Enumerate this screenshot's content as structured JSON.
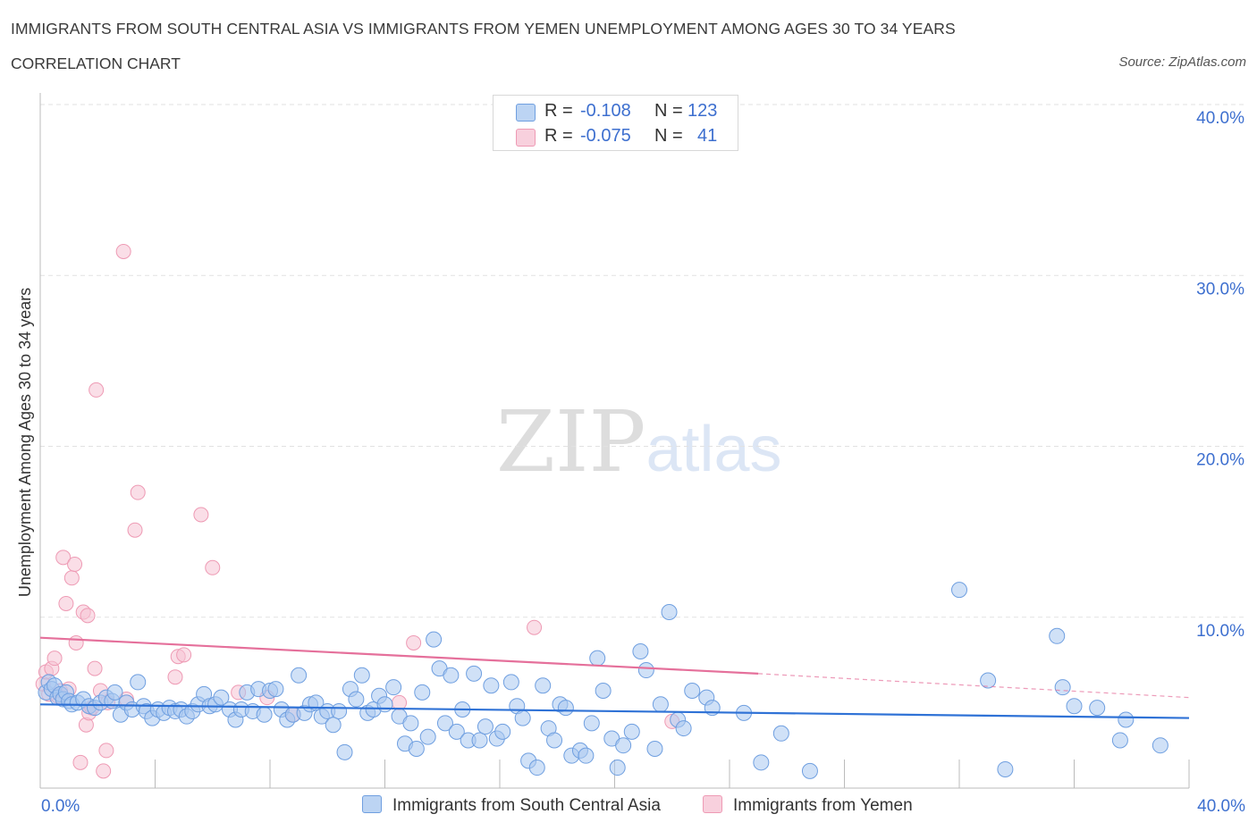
{
  "header": {
    "title": "IMMIGRANTS FROM SOUTH CENTRAL ASIA VS IMMIGRANTS FROM YEMEN UNEMPLOYMENT AMONG AGES 30 TO 34 YEARS",
    "subtitle": "CORRELATION CHART",
    "source": "Source: ZipAtlas.com"
  },
  "watermark": {
    "zip": "ZIP",
    "atlas": "atlas"
  },
  "legend": {
    "series1": {
      "r_label": "R =",
      "r_value": "-0.108",
      "n_label": "N =",
      "n_value": "123"
    },
    "series2": {
      "r_label": "R =",
      "r_value": "-0.075",
      "n_label": "N =",
      "n_value": "41"
    }
  },
  "bottom_legend": {
    "series1": "Immigrants from South Central Asia",
    "series2": "Immigrants from Yemen"
  },
  "colors": {
    "blue_fill": "#aac8f0",
    "blue_stroke": "#6f9fe0",
    "blue_line": "#2f72d6",
    "pink_fill": "#f6c3d3",
    "pink_stroke": "#ee9ab4",
    "pink_line": "#e5709b",
    "tick_text": "#3d6fcf",
    "grid": "#e2e2e2"
  },
  "chart_data": {
    "type": "scatter",
    "title": "IMMIGRANTS FROM SOUTH CENTRAL ASIA VS IMMIGRANTS FROM YEMEN UNEMPLOYMENT AMONG AGES 30 TO 34 YEARS",
    "xlabel": "",
    "ylabel": "Unemployment Among Ages 30 to 34 years",
    "xlim": [
      0,
      40
    ],
    "ylim": [
      0,
      40
    ],
    "x_tick_labels": [
      "0.0%",
      "40.0%"
    ],
    "y_ticks": [
      10,
      20,
      30,
      40
    ],
    "y_tick_labels": [
      "10.0%",
      "20.0%",
      "30.0%",
      "40.0%"
    ],
    "grid": true,
    "legend_position": "top-center",
    "series": [
      {
        "name": "Immigrants from South Central Asia",
        "color": "#6f9fe0",
        "R": -0.108,
        "N": 123,
        "trend": {
          "x": [
            0,
            40
          ],
          "y": [
            4.9,
            4.1
          ],
          "extends_to": 40
        },
        "points": [
          [
            0.2,
            5.6
          ],
          [
            0.3,
            6.2
          ],
          [
            0.4,
            5.8
          ],
          [
            0.5,
            6.0
          ],
          [
            0.6,
            5.3
          ],
          [
            0.7,
            5.5
          ],
          [
            0.8,
            5.2
          ],
          [
            0.9,
            5.6
          ],
          [
            1.0,
            5.1
          ],
          [
            1.1,
            4.9
          ],
          [
            1.3,
            5.0
          ],
          [
            1.5,
            5.2
          ],
          [
            1.7,
            4.8
          ],
          [
            1.9,
            4.7
          ],
          [
            2.1,
            5.0
          ],
          [
            2.3,
            5.3
          ],
          [
            2.5,
            5.1
          ],
          [
            2.6,
            5.6
          ],
          [
            2.8,
            4.3
          ],
          [
            3.0,
            5.0
          ],
          [
            3.2,
            4.6
          ],
          [
            3.4,
            6.2
          ],
          [
            3.6,
            4.8
          ],
          [
            3.7,
            4.5
          ],
          [
            3.9,
            4.1
          ],
          [
            4.1,
            4.6
          ],
          [
            4.3,
            4.4
          ],
          [
            4.5,
            4.7
          ],
          [
            4.7,
            4.5
          ],
          [
            4.9,
            4.6
          ],
          [
            5.1,
            4.2
          ],
          [
            5.3,
            4.5
          ],
          [
            5.5,
            4.9
          ],
          [
            5.7,
            5.5
          ],
          [
            5.9,
            4.8
          ],
          [
            6.1,
            4.9
          ],
          [
            6.3,
            5.3
          ],
          [
            6.6,
            4.6
          ],
          [
            6.8,
            4.0
          ],
          [
            7.0,
            4.6
          ],
          [
            7.2,
            5.6
          ],
          [
            7.4,
            4.5
          ],
          [
            7.6,
            5.8
          ],
          [
            7.8,
            4.3
          ],
          [
            8.0,
            5.7
          ],
          [
            8.2,
            5.8
          ],
          [
            8.4,
            4.6
          ],
          [
            8.6,
            4.0
          ],
          [
            8.8,
            4.3
          ],
          [
            9.0,
            6.6
          ],
          [
            9.2,
            4.4
          ],
          [
            9.4,
            4.9
          ],
          [
            9.6,
            5.0
          ],
          [
            9.8,
            4.2
          ],
          [
            10.0,
            4.5
          ],
          [
            10.2,
            3.7
          ],
          [
            10.4,
            4.5
          ],
          [
            10.6,
            2.1
          ],
          [
            10.8,
            5.8
          ],
          [
            11.0,
            5.2
          ],
          [
            11.2,
            6.6
          ],
          [
            11.4,
            4.4
          ],
          [
            11.6,
            4.6
          ],
          [
            11.8,
            5.4
          ],
          [
            12.0,
            4.9
          ],
          [
            12.3,
            5.9
          ],
          [
            12.5,
            4.2
          ],
          [
            12.7,
            2.6
          ],
          [
            12.9,
            3.8
          ],
          [
            13.1,
            2.3
          ],
          [
            13.3,
            5.6
          ],
          [
            13.5,
            3.0
          ],
          [
            13.7,
            8.7
          ],
          [
            13.9,
            7.0
          ],
          [
            14.1,
            3.8
          ],
          [
            14.3,
            6.6
          ],
          [
            14.5,
            3.3
          ],
          [
            14.7,
            4.6
          ],
          [
            14.9,
            2.8
          ],
          [
            15.1,
            6.7
          ],
          [
            15.3,
            2.8
          ],
          [
            15.5,
            3.6
          ],
          [
            15.7,
            6.0
          ],
          [
            15.9,
            2.9
          ],
          [
            16.1,
            3.3
          ],
          [
            16.4,
            6.2
          ],
          [
            16.6,
            4.8
          ],
          [
            16.8,
            4.1
          ],
          [
            17.0,
            1.6
          ],
          [
            17.3,
            1.2
          ],
          [
            17.5,
            6.0
          ],
          [
            17.7,
            3.5
          ],
          [
            17.9,
            2.8
          ],
          [
            18.1,
            4.9
          ],
          [
            18.3,
            4.7
          ],
          [
            18.5,
            1.9
          ],
          [
            18.8,
            2.2
          ],
          [
            19.0,
            1.9
          ],
          [
            19.2,
            3.8
          ],
          [
            19.4,
            7.6
          ],
          [
            19.6,
            5.7
          ],
          [
            19.9,
            2.9
          ],
          [
            20.1,
            1.2
          ],
          [
            20.3,
            2.5
          ],
          [
            20.6,
            3.3
          ],
          [
            20.9,
            8.0
          ],
          [
            21.1,
            6.9
          ],
          [
            21.4,
            2.3
          ],
          [
            21.6,
            4.9
          ],
          [
            21.9,
            10.3
          ],
          [
            22.2,
            4.0
          ],
          [
            22.4,
            3.5
          ],
          [
            22.7,
            5.7
          ],
          [
            23.2,
            5.3
          ],
          [
            23.4,
            4.7
          ],
          [
            24.5,
            4.4
          ],
          [
            25.1,
            1.5
          ],
          [
            25.8,
            3.2
          ],
          [
            26.8,
            1.0
          ],
          [
            32.0,
            11.6
          ],
          [
            33.0,
            6.3
          ],
          [
            33.6,
            1.1
          ],
          [
            35.4,
            8.9
          ],
          [
            35.6,
            5.9
          ],
          [
            36.0,
            4.8
          ],
          [
            36.8,
            4.7
          ],
          [
            37.6,
            2.8
          ],
          [
            37.8,
            4.0
          ],
          [
            39.0,
            2.5
          ]
        ]
      },
      {
        "name": "Immigrants from Yemen",
        "color": "#ee9ab4",
        "R": -0.075,
        "N": 41,
        "trend": {
          "x": [
            0,
            25.0
          ],
          "y": [
            8.8,
            6.7
          ],
          "dashed_extension": [
            40,
            5.3
          ]
        },
        "points": [
          [
            0.1,
            6.1
          ],
          [
            0.2,
            6.8
          ],
          [
            0.3,
            5.5
          ],
          [
            0.4,
            7.0
          ],
          [
            0.5,
            7.6
          ],
          [
            0.6,
            5.4
          ],
          [
            0.7,
            5.7
          ],
          [
            0.8,
            13.5
          ],
          [
            0.9,
            10.8
          ],
          [
            1.0,
            5.8
          ],
          [
            1.1,
            12.3
          ],
          [
            1.2,
            13.1
          ],
          [
            1.25,
            8.5
          ],
          [
            1.4,
            1.5
          ],
          [
            1.5,
            10.3
          ],
          [
            1.6,
            3.7
          ],
          [
            1.65,
            10.1
          ],
          [
            1.7,
            4.4
          ],
          [
            1.8,
            4.7
          ],
          [
            1.9,
            7.0
          ],
          [
            1.95,
            23.3
          ],
          [
            2.1,
            5.7
          ],
          [
            2.2,
            1.0
          ],
          [
            2.3,
            2.2
          ],
          [
            2.35,
            5.0
          ],
          [
            2.9,
            31.4
          ],
          [
            3.0,
            5.2
          ],
          [
            3.3,
            15.1
          ],
          [
            3.4,
            17.3
          ],
          [
            4.7,
            6.5
          ],
          [
            4.8,
            7.7
          ],
          [
            5.0,
            7.8
          ],
          [
            5.6,
            16.0
          ],
          [
            6.0,
            12.9
          ],
          [
            6.9,
            5.6
          ],
          [
            7.9,
            5.3
          ],
          [
            8.8,
            4.3
          ],
          [
            13.0,
            8.5
          ],
          [
            12.5,
            5.0
          ],
          [
            17.2,
            9.4
          ],
          [
            22.0,
            3.9
          ]
        ]
      }
    ]
  }
}
